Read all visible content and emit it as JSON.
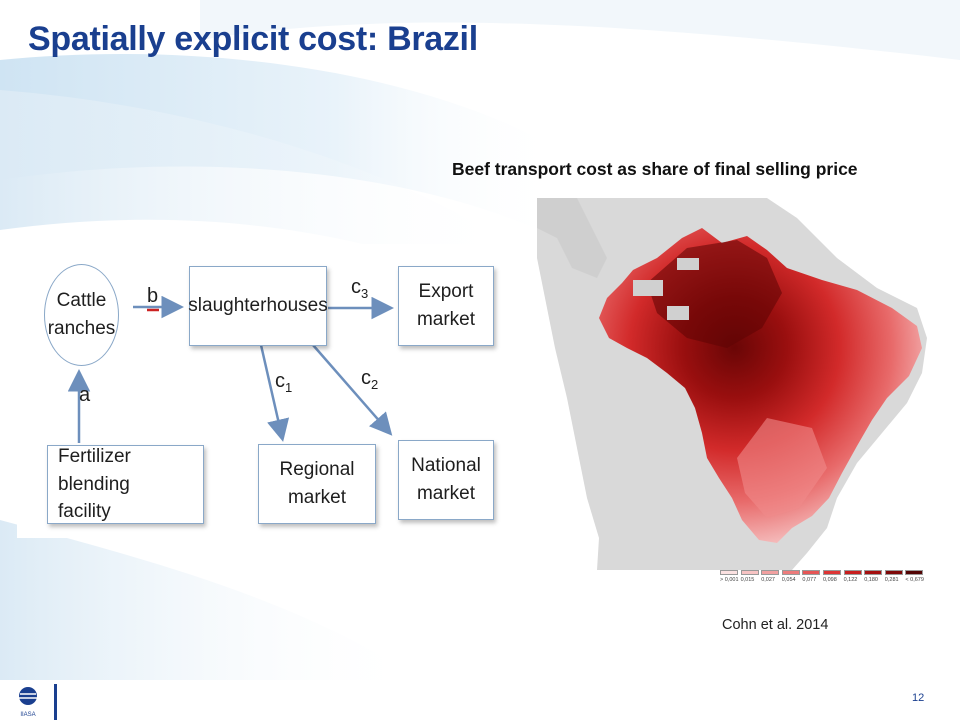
{
  "slide": {
    "title": "Spatially explicit cost: Brazil",
    "page_number": "12"
  },
  "diagram": {
    "nodes": {
      "cattle_ranches": [
        "Cattle",
        "ranches"
      ],
      "slaughterhouses": "slaughterhouses",
      "export_market": [
        "Export",
        "market"
      ],
      "fertilizer": [
        "Fertilizer blending",
        "facility"
      ],
      "regional_market": [
        "Regional",
        "market"
      ],
      "national_market": [
        "National",
        "market"
      ]
    },
    "edges": {
      "a": "a",
      "b": "b",
      "c1_base": "c",
      "c1_sub": "1",
      "c2_base": "c",
      "c2_sub": "2",
      "c3_base": "c",
      "c3_sub": "3"
    }
  },
  "map": {
    "title": "Beef transport cost as share of final selling price",
    "legend": [
      "> 0,001",
      "0,015",
      "0,027",
      "0,054",
      "0,077",
      "0,098",
      "0,122",
      "0,180",
      "0,281",
      "< 0,679"
    ],
    "legend_colors": [
      "#fbe1e1",
      "#f7c3c3",
      "#f1a0a0",
      "#ec7b7b",
      "#e65656",
      "#de3636",
      "#c81e1e",
      "#a51010",
      "#7e0808",
      "#520404"
    ],
    "citation": "Cohn et al. 2014"
  },
  "logo": {
    "text": "IIASA"
  }
}
